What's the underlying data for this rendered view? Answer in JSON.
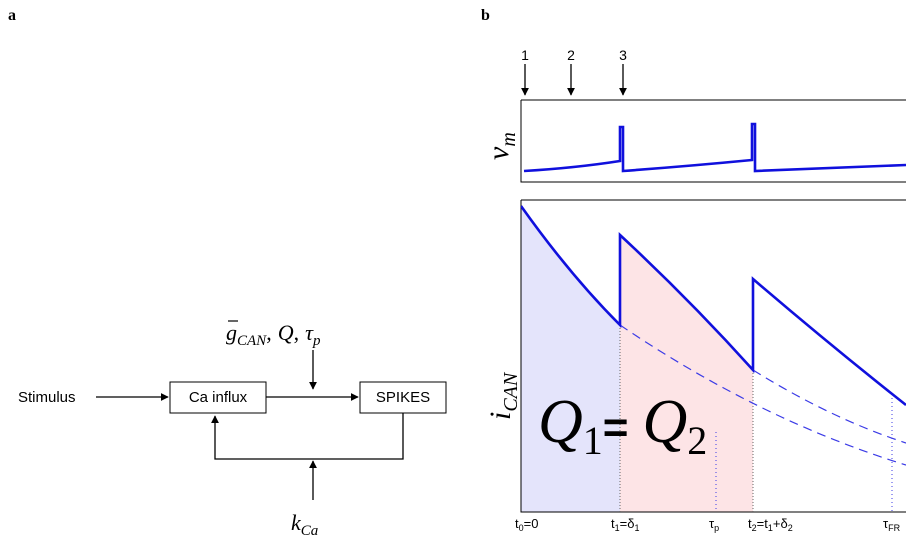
{
  "panel_a": {
    "label": "a",
    "stimulus": "Stimulus",
    "ca_influx": "Ca influx",
    "spikes": "SPIKES",
    "params": {
      "g": "g",
      "g_sub": "CAN",
      "sep1": ",",
      "q": "Q",
      "sep2": ",",
      "tau": "τ",
      "tau_sub": "p"
    },
    "kca": {
      "k": "k",
      "sub": "Ca"
    }
  },
  "panel_b": {
    "label": "b",
    "arrow_labels": [
      "1",
      "2",
      "3"
    ],
    "vm_label": {
      "v": "v",
      "sub": "m"
    },
    "ican_label": {
      "i": "i",
      "sub": "CAN"
    },
    "q_equation": {
      "q1": "Q",
      "q1_sub": "1",
      "eq": "=",
      "q2": "Q",
      "q2_sub": "2"
    },
    "ticks": [
      {
        "main": "t",
        "sub": "0",
        "rest": "=0"
      },
      {
        "main": "t",
        "sub": "1",
        "rest": "=δ",
        "sub2": "1"
      },
      {
        "main": "τ",
        "sub": "p"
      },
      {
        "main": "t",
        "sub": "2",
        "rest": "=t",
        "sub2": "1",
        "rest2": "+δ",
        "sub3": "2"
      },
      {
        "main": "τ",
        "sub": "FR"
      }
    ]
  },
  "colors": {
    "trace": "#1010dd",
    "q1_fill": "#e4e4fb",
    "q2_fill": "#fde4e6",
    "dashed": "#3b3be6"
  }
}
